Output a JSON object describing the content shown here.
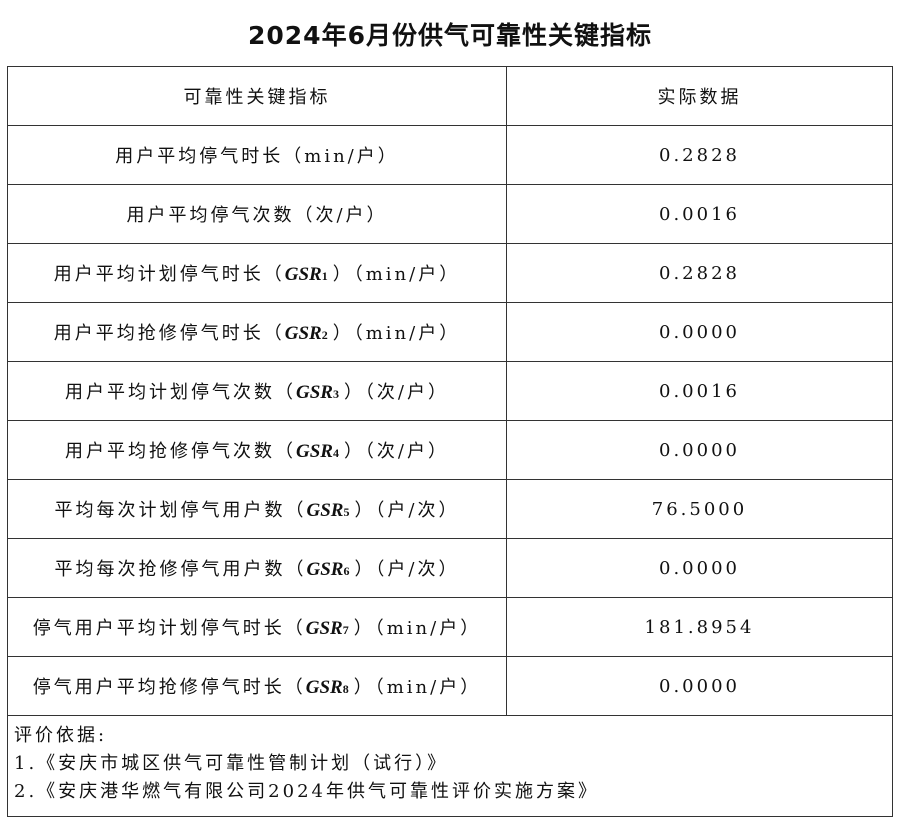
{
  "title": "2024年6月份供气可靠性关键指标",
  "header": {
    "col1": "可靠性关键指标",
    "col2": "实际数据"
  },
  "rows": [
    {
      "before": "用户平均停气时长（min/户）",
      "gsr": "",
      "sub": "",
      "after": "",
      "value": "0.2828"
    },
    {
      "before": "用户平均停气次数（次/户）",
      "gsr": "",
      "sub": "",
      "after": "",
      "value": "0.0016"
    },
    {
      "before": "用户平均计划停气时长（",
      "gsr": "GSR",
      "sub": "1",
      "after": "）（min/户）",
      "value": "0.2828"
    },
    {
      "before": "用户平均抢修停气时长（",
      "gsr": "GSR",
      "sub": "2",
      "after": "）（min/户）",
      "value": "0.0000"
    },
    {
      "before": "用户平均计划停气次数（",
      "gsr": "GSR",
      "sub": "3",
      "after": "）（次/户）",
      "value": "0.0016"
    },
    {
      "before": "用户平均抢修停气次数（",
      "gsr": "GSR",
      "sub": "4",
      "after": "）（次/户）",
      "value": "0.0000"
    },
    {
      "before": "平均每次计划停气用户数（",
      "gsr": "GSR",
      "sub": "5",
      "after": "）（户/次）",
      "value": "76.5000"
    },
    {
      "before": "平均每次抢修停气用户数（",
      "gsr": "GSR",
      "sub": "6",
      "after": "）（户/次）",
      "value": "0.0000"
    },
    {
      "before": "停气用户平均计划停气时长（",
      "gsr": "GSR",
      "sub": "7",
      "after": "）（min/户）",
      "value": "181.8954"
    },
    {
      "before": "停气用户平均抢修停气时长（",
      "gsr": "GSR",
      "sub": "8",
      "after": "）（min/户）",
      "value": "0.0000"
    }
  ],
  "footer": {
    "heading": "评价依据:",
    "items": [
      "1.《安庆市城区供气可靠性管制计划（试行）》",
      "2.《安庆港华燃气有限公司2024年供气可靠性评价实施方案》"
    ]
  }
}
